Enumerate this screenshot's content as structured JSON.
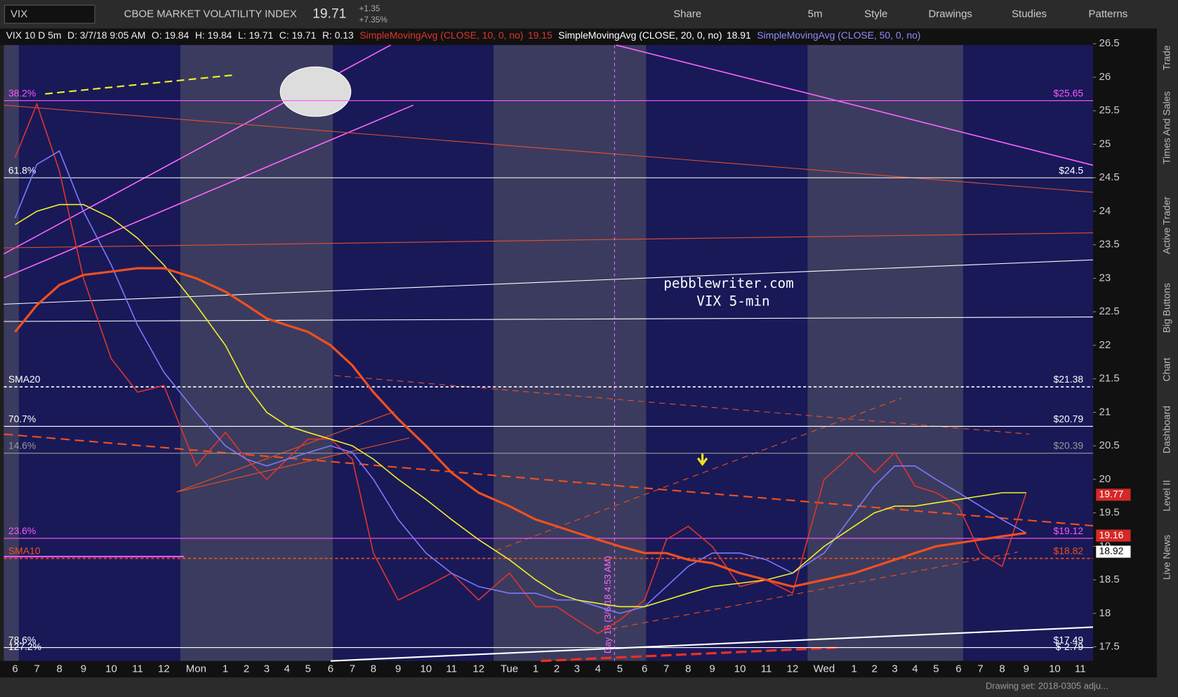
{
  "toolbar": {
    "symbol": "VIX",
    "description": "CBOE MARKET VOLATILITY INDEX",
    "last": "19.71",
    "change": "+1.35",
    "change_pct": "+7.35%",
    "buttons": [
      "Share",
      "5m",
      "Style",
      "Drawings",
      "Studies",
      "Patterns"
    ]
  },
  "header": {
    "chart": "VIX 10 D 5m",
    "date": "D: 3/7/18 9:05 AM",
    "open": "O: 19.84",
    "high": "H: 19.84",
    "low": "L: 19.71",
    "close": "C: 19.71",
    "range": "R: 0.13",
    "studies": [
      {
        "text": "SimpleMovingAvg (CLOSE, 10, 0, no)",
        "value": "19.15",
        "color": "#e0342c"
      },
      {
        "text": "SimpleMovingAvg (CLOSE, 20, 0, no)",
        "value": "18.91",
        "color": "#ffffff"
      },
      {
        "text": "SimpleMovingAvg (CLOSE, 50, 0, no)",
        "value": "",
        "color": "#8c8cff"
      }
    ]
  },
  "sidebar": [
    "Trade",
    "Times And Sales",
    "Active Trader",
    "Big Buttons",
    "Chart",
    "Dashboard",
    "Level II",
    "Live News"
  ],
  "footer": "Drawing set: 2018-0305 adju...",
  "chart_data": {
    "type": "line",
    "annotations": [
      "pebblewriter.com",
      "VIX 5-min",
      "Day 16 (3/6/18 4:53 AM)"
    ],
    "categories": [
      "6",
      "7",
      "8",
      "9",
      "10",
      "11",
      "12",
      "Mon",
      "1",
      "2",
      "3",
      "4",
      "5",
      "6",
      "7",
      "8",
      "9",
      "10",
      "11",
      "12",
      "Tue",
      "1",
      "2",
      "3",
      "4",
      "5",
      "6",
      "7",
      "8",
      "9",
      "10",
      "11",
      "12",
      "Wed",
      "1",
      "2",
      "3",
      "4",
      "5",
      "6",
      "7",
      "8",
      "9",
      "10",
      "11"
    ],
    "series": [
      {
        "color": "#e0342c",
        "values": [
          24.8,
          25.6,
          24.6,
          23.0,
          21.8,
          21.3,
          21.4,
          20.2,
          20.7,
          20.3,
          20.0,
          20.3,
          20.6,
          20.6,
          20.3,
          18.9,
          18.2,
          18.4,
          18.6,
          18.2,
          18.6,
          18.1,
          18.1,
          17.9,
          17.7,
          17.9,
          18.2,
          19.1,
          19.3,
          19.0,
          18.4,
          18.5,
          18.3,
          20.0,
          20.4,
          20.1,
          20.4,
          19.9,
          19.8,
          19.6,
          18.9,
          18.7,
          19.8,
          null,
          null
        ]
      },
      {
        "color": "#7a7aff",
        "values": [
          23.9,
          24.7,
          24.9,
          24.0,
          23.2,
          22.3,
          21.6,
          21.0,
          20.5,
          20.3,
          20.2,
          20.3,
          20.4,
          20.5,
          20.4,
          20.0,
          19.4,
          18.9,
          18.6,
          18.4,
          18.3,
          18.3,
          18.2,
          18.2,
          18.1,
          18.0,
          18.1,
          18.4,
          18.7,
          18.9,
          18.9,
          18.8,
          18.6,
          18.9,
          19.5,
          19.9,
          20.2,
          20.2,
          20.0,
          19.8,
          19.6,
          19.4,
          19.2,
          null,
          null
        ]
      },
      {
        "color": "#f0f02a",
        "values": [
          23.8,
          24.0,
          24.1,
          24.1,
          23.9,
          23.6,
          23.2,
          22.6,
          22.0,
          21.4,
          21.0,
          20.8,
          20.7,
          20.6,
          20.5,
          20.3,
          20.0,
          19.7,
          19.4,
          19.1,
          18.8,
          18.5,
          18.3,
          18.2,
          18.15,
          18.1,
          18.1,
          18.2,
          18.3,
          18.4,
          18.45,
          18.5,
          18.6,
          19.0,
          19.3,
          19.5,
          19.6,
          19.6,
          19.65,
          19.7,
          19.75,
          19.8,
          19.8,
          null,
          null
        ]
      },
      {
        "color": "#f0501e",
        "values": [
          22.2,
          22.6,
          22.9,
          23.05,
          23.1,
          23.15,
          23.15,
          23.0,
          22.8,
          22.6,
          22.4,
          22.3,
          22.2,
          22.0,
          21.7,
          21.3,
          20.9,
          20.5,
          20.1,
          19.8,
          19.6,
          19.4,
          19.3,
          19.2,
          19.1,
          19.0,
          18.9,
          18.9,
          18.8,
          18.75,
          18.6,
          18.5,
          18.4,
          18.5,
          18.6,
          18.7,
          18.8,
          18.9,
          19.0,
          19.05,
          19.1,
          19.15,
          19.2,
          null,
          null
        ]
      }
    ],
    "levels": [
      {
        "name": "38.2%",
        "value": 25.65,
        "label": "$25.65",
        "color": "#ff55ff"
      },
      {
        "name": "61.8%",
        "value": 24.5,
        "label": "$24.5",
        "color": "#ffffff"
      },
      {
        "name": "SMA20",
        "value": 21.38,
        "label": "$21.38",
        "color": "#ffffff"
      },
      {
        "name": "70.7%",
        "value": 20.79,
        "label": "$20.79",
        "color": "#ffffff"
      },
      {
        "name": "14.6%",
        "value": 20.39,
        "label": "$20.39",
        "color": "#999999"
      },
      {
        "name": "23.6%",
        "value": 19.12,
        "label": "$19.12",
        "color": "#ff55ff"
      },
      {
        "name": "SMA10",
        "value": 18.82,
        "label": "$18.82",
        "color": "#f0501e"
      },
      {
        "name": "78.6%",
        "value": 17.49,
        "label": "$17.49",
        "color": "#ffffff"
      },
      {
        "name": "127.2%",
        "value": -2.79,
        "label": "$-2.79",
        "color": "#ffffff"
      }
    ],
    "price_tags": [
      {
        "value": 19.77,
        "color": "#d62828"
      },
      {
        "value": 19.16,
        "color": "#d62828"
      },
      {
        "value": 18.92,
        "color": "#ffffff"
      }
    ],
    "ylim": [
      17.29,
      26.48
    ],
    "yticks": [
      17.5,
      18,
      18.5,
      19,
      19.5,
      20,
      20.5,
      21,
      21.5,
      22,
      22.5,
      23,
      23.5,
      24,
      24.5,
      25,
      25.5,
      26,
      26.5
    ]
  }
}
